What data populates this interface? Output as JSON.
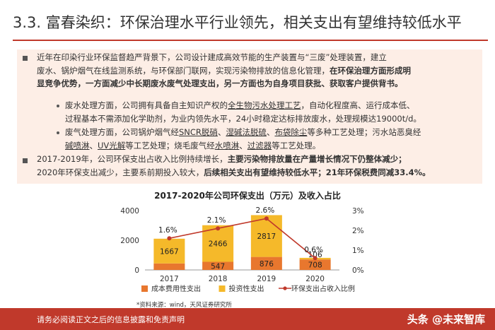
{
  "title": "3.3. 富春染织：环保治理水平行业领先，相关支出有望维持较低水平",
  "p1": {
    "t1": "近年在印染行业环保监督趋严背景下，公司设计建成高效节能的生产装置与“三废”处理装置，建立",
    "t2": "废水、锅炉烟气在线监测系统，与环保部门联网，实现污染物排放的信息化管理，",
    "t2b": "在环保治理方面形成明",
    "t3": "显竞争优势，一方面减少中长期废水废气处理支出，另一方面也为自身项目获批、获取客户提供背书。"
  },
  "b1": {
    "t1": "废水处理方面，公司拥有具备自主知识产权的",
    "t1u": "全生物污水处理工艺",
    "t1c": "，自动化程度高、运行成本低、",
    "t2": "过程基本不需添加化学助剂，为业内领先水平，24小时稳定达标排放废水，处理规模达19000t/d。"
  },
  "b2": {
    "t1a": "废气处理方面，公司锅炉烟气经",
    "t1u1": "SNCR脱硝",
    "t1b": "、",
    "t1u2": "湿碱法脱硫",
    "t1c": "、",
    "t1u3": "布袋除尘",
    "t1d": "等多种工艺处理；污水站恶臭经",
    "t2u1": "碱喷淋",
    "t2a": "、",
    "t2u2": "UV光解",
    "t2b": "等工艺处理；烧毛废气经",
    "t2u3": "水喷淋",
    "t2c": "、",
    "t2u4": "过滤器",
    "t2d": "等工艺处理。"
  },
  "p2": {
    "t1": "2017-2019年，公司环保支出占收入比例持续增长，",
    "t1b": "主要污染物排放量在产量增长情况下仍整体减少；",
    "t2": "2020年环保支出减少，主要系前期投入较大，",
    "t2b": "后续相关支出有望维持较低水平；21年环保税费同减33.4%。"
  },
  "chart_data": {
    "type": "bar",
    "title": "2017-2020年公司环保支出（万元）及收入占比",
    "categories": [
      "2017",
      "2018",
      "2019",
      "2020"
    ],
    "series": [
      {
        "name": "成本费用性支出",
        "type": "bar",
        "stack": "a",
        "color": "#e8772e",
        "values": [
          438,
          547,
          876,
          708
        ]
      },
      {
        "name": "投资性支出",
        "type": "bar",
        "stack": "a",
        "color": "#f5b92a",
        "values": [
          1667,
          2466,
          2817,
          106
        ]
      },
      {
        "name": "环保支出占收入比例",
        "type": "line",
        "axis": "right",
        "color": "#c0392b",
        "values": [
          1.6,
          2.1,
          2.6,
          0.6
        ],
        "labels": [
          "1.6%",
          "2.1%",
          "2.6%",
          "0.6%"
        ]
      }
    ],
    "ylim_left": [
      0,
      4000
    ],
    "yticks_left": [
      "0",
      "2000",
      "4000"
    ],
    "ylim_right": [
      0,
      3
    ],
    "yticks_right": [
      "0%",
      "1%",
      "2%",
      "3%"
    ],
    "legend": "bottom",
    "source": "*资料来源：wind，天风证券研究所"
  },
  "footer": {
    "text": "请务必阅读正文之后的信息披露和免责声明",
    "watermark": "头条 @未来智库"
  },
  "colors": {
    "accent": "#c0392b",
    "box_bg": "#fdeee6"
  }
}
